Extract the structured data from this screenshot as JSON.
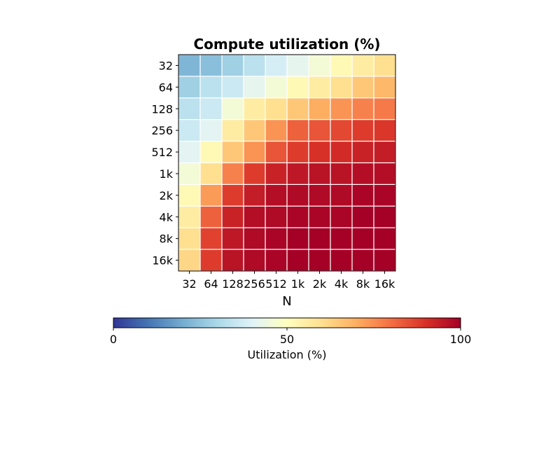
{
  "chart_data": {
    "type": "heatmap",
    "title": "Compute utilization (%)",
    "xlabel": "N",
    "ylabel": "",
    "x_categories": [
      "32",
      "64",
      "128",
      "256",
      "512",
      "1k",
      "2k",
      "4k",
      "8k",
      "16k"
    ],
    "y_categories": [
      "32",
      "64",
      "128",
      "256",
      "512",
      "1k",
      "2k",
      "4k",
      "8k",
      "16k"
    ],
    "values": [
      [
        22,
        24,
        28,
        33,
        38,
        42,
        46,
        52,
        56,
        60
      ],
      [
        28,
        33,
        36,
        42,
        46,
        52,
        56,
        60,
        65,
        68
      ],
      [
        33,
        36,
        46,
        56,
        60,
        65,
        70,
        74,
        77,
        78
      ],
      [
        36,
        41,
        56,
        65,
        74,
        82,
        84,
        86,
        88,
        89
      ],
      [
        41,
        52,
        65,
        74,
        84,
        88,
        90,
        91,
        93,
        94
      ],
      [
        46,
        60,
        77,
        88,
        93,
        95,
        96,
        96,
        97,
        97
      ],
      [
        52,
        73,
        88,
        94,
        97,
        98,
        98,
        98,
        99,
        99
      ],
      [
        56,
        82,
        93,
        97,
        98,
        99,
        99,
        99,
        100,
        100
      ],
      [
        60,
        87,
        95,
        98,
        99,
        100,
        100,
        100,
        100,
        100
      ],
      [
        62,
        88,
        96,
        98,
        99,
        100,
        100,
        100,
        100,
        100
      ]
    ],
    "value_range": [
      0,
      100
    ],
    "colormap": "RdYlBu_r",
    "cell_gap_color": "#ffffff",
    "colorbar": {
      "orientation": "horizontal",
      "label": "Utilization (%)",
      "ticks": [
        0,
        50,
        100
      ],
      "tick_labels": [
        "0",
        "50",
        "100"
      ]
    },
    "grid": false,
    "legend": "none"
  }
}
